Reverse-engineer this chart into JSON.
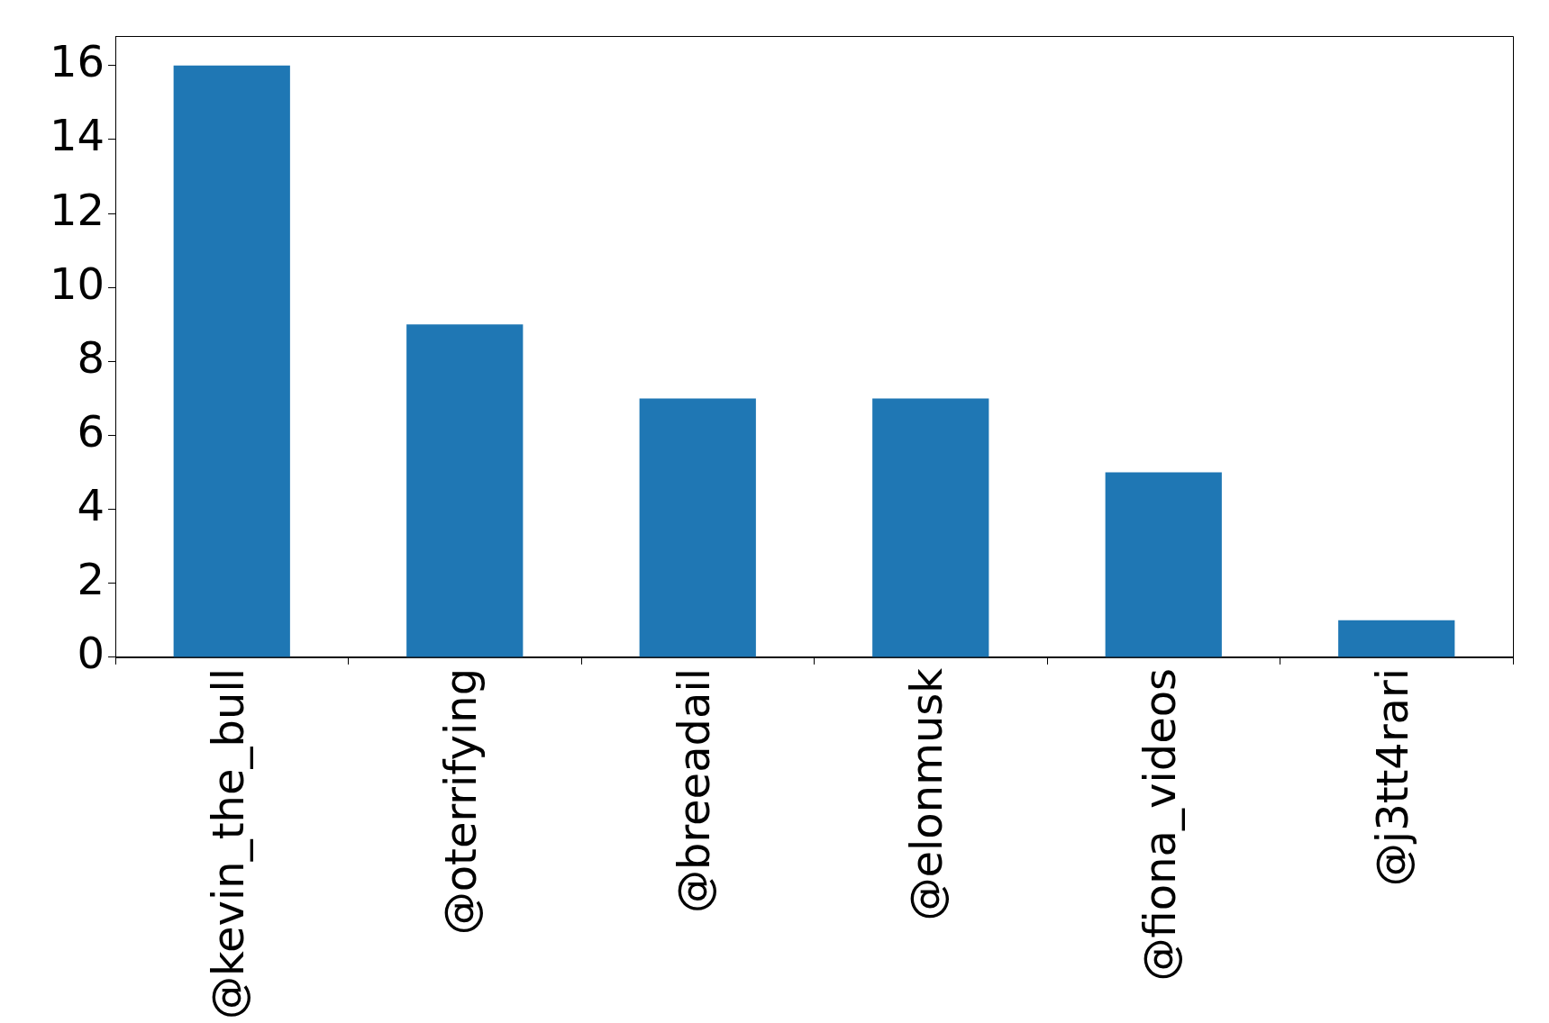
{
  "chart_data": {
    "type": "bar",
    "categories": [
      "@kevin_the_bull",
      "@oterrifying",
      "@breeadail",
      "@elonmusk",
      "@fiona_videos",
      "@j3tt4rari"
    ],
    "values": [
      16,
      9,
      7,
      7,
      5,
      1
    ],
    "color": "#1f77b4",
    "ylim": [
      0,
      16.8
    ],
    "yticks": [
      0,
      2,
      4,
      6,
      8,
      10,
      12,
      14,
      16
    ],
    "grid": false,
    "legend": false
  }
}
